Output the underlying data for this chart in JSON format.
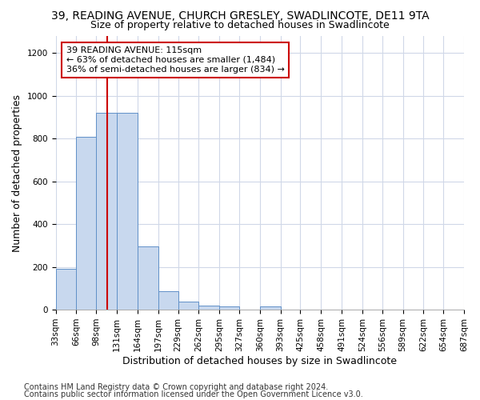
{
  "title": "39, READING AVENUE, CHURCH GRESLEY, SWADLINCOTE, DE11 9TA",
  "subtitle": "Size of property relative to detached houses in Swadlincote",
  "xlabel": "Distribution of detached houses by size in Swadlincote",
  "ylabel": "Number of detached properties",
  "bin_edges": [
    33,
    66,
    98,
    131,
    164,
    197,
    229,
    262,
    295,
    327,
    360,
    393,
    425,
    458,
    491,
    524,
    556,
    589,
    622,
    654,
    687
  ],
  "bar_heights": [
    190,
    810,
    920,
    920,
    295,
    88,
    37,
    18,
    15,
    0,
    15,
    0,
    0,
    0,
    0,
    0,
    0,
    0,
    0,
    0
  ],
  "bar_color": "#c8d8ee",
  "bar_edge_color": "#6090c8",
  "property_size": 115,
  "vline_color": "#cc0000",
  "annotation_text": "39 READING AVENUE: 115sqm\n← 63% of detached houses are smaller (1,484)\n36% of semi-detached houses are larger (834) →",
  "annotation_box_color": "#ffffff",
  "annotation_box_edge": "#cc0000",
  "ylim": [
    0,
    1280
  ],
  "yticks": [
    0,
    200,
    400,
    600,
    800,
    1000,
    1200
  ],
  "tick_labels": [
    "33sqm",
    "66sqm",
    "98sqm",
    "131sqm",
    "164sqm",
    "197sqm",
    "229sqm",
    "262sqm",
    "295sqm",
    "327sqm",
    "360sqm",
    "393sqm",
    "425sqm",
    "458sqm",
    "491sqm",
    "524sqm",
    "556sqm",
    "589sqm",
    "622sqm",
    "654sqm",
    "687sqm"
  ],
  "footer1": "Contains HM Land Registry data © Crown copyright and database right 2024.",
  "footer2": "Contains public sector information licensed under the Open Government Licence v3.0.",
  "bg_color": "#ffffff",
  "plot_bg_color": "#ffffff",
  "grid_color": "#d0d8e8",
  "title_fontsize": 10,
  "subtitle_fontsize": 9,
  "axis_label_fontsize": 9,
  "tick_fontsize": 7.5,
  "annotation_fontsize": 8,
  "footer_fontsize": 7
}
